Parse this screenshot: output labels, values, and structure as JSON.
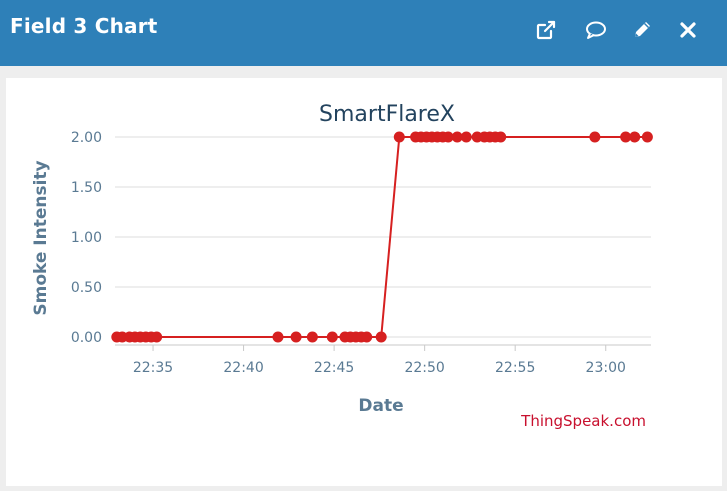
{
  "window": {
    "title": "Field 3 Chart",
    "icons": [
      "external-link-icon",
      "comment-icon",
      "pencil-icon",
      "close-icon"
    ]
  },
  "colors": {
    "header": "#2e80b8",
    "series": "#d62020",
    "axis_text": "#5a7a93",
    "title_text": "#23435e"
  },
  "chart_data": {
    "type": "line",
    "title": "SmartFlareX",
    "xlabel": "Date",
    "ylabel": "Smoke Intensity",
    "credit": "ThingSpeak.com",
    "grid": true,
    "x_unit": "minutes since 22:30",
    "xlim": [
      2.9,
      32.5
    ],
    "ylim": [
      0,
      2
    ],
    "y_ticks": [
      0,
      0.5,
      1,
      1.5,
      2
    ],
    "y_tick_labels": [
      "0.00",
      "0.50",
      "1.00",
      "1.50",
      "2.00"
    ],
    "x_ticks": [
      5,
      10,
      15,
      20,
      25,
      30
    ],
    "x_tick_labels": [
      "22:35",
      "22:40",
      "22:45",
      "22:50",
      "22:55",
      "23:00"
    ],
    "series": [
      {
        "name": "Field 3",
        "x": [
          3.0,
          3.3,
          3.7,
          4.0,
          4.3,
          4.6,
          4.9,
          5.2,
          11.9,
          12.9,
          13.8,
          14.9,
          15.6,
          15.9,
          16.2,
          16.5,
          16.8,
          17.6,
          18.6,
          19.5,
          19.8,
          20.1,
          20.4,
          20.7,
          21.0,
          21.3,
          21.8,
          22.3,
          22.9,
          23.3,
          23.6,
          23.9,
          24.2,
          29.4,
          31.1,
          31.6,
          32.3
        ],
        "values": [
          0,
          0,
          0,
          0,
          0,
          0,
          0,
          0,
          0,
          0,
          0,
          0,
          0,
          0,
          0,
          0,
          0,
          0,
          2,
          2,
          2,
          2,
          2,
          2,
          2,
          2,
          2,
          2,
          2,
          2,
          2,
          2,
          2,
          2,
          2,
          2,
          2
        ]
      }
    ]
  }
}
